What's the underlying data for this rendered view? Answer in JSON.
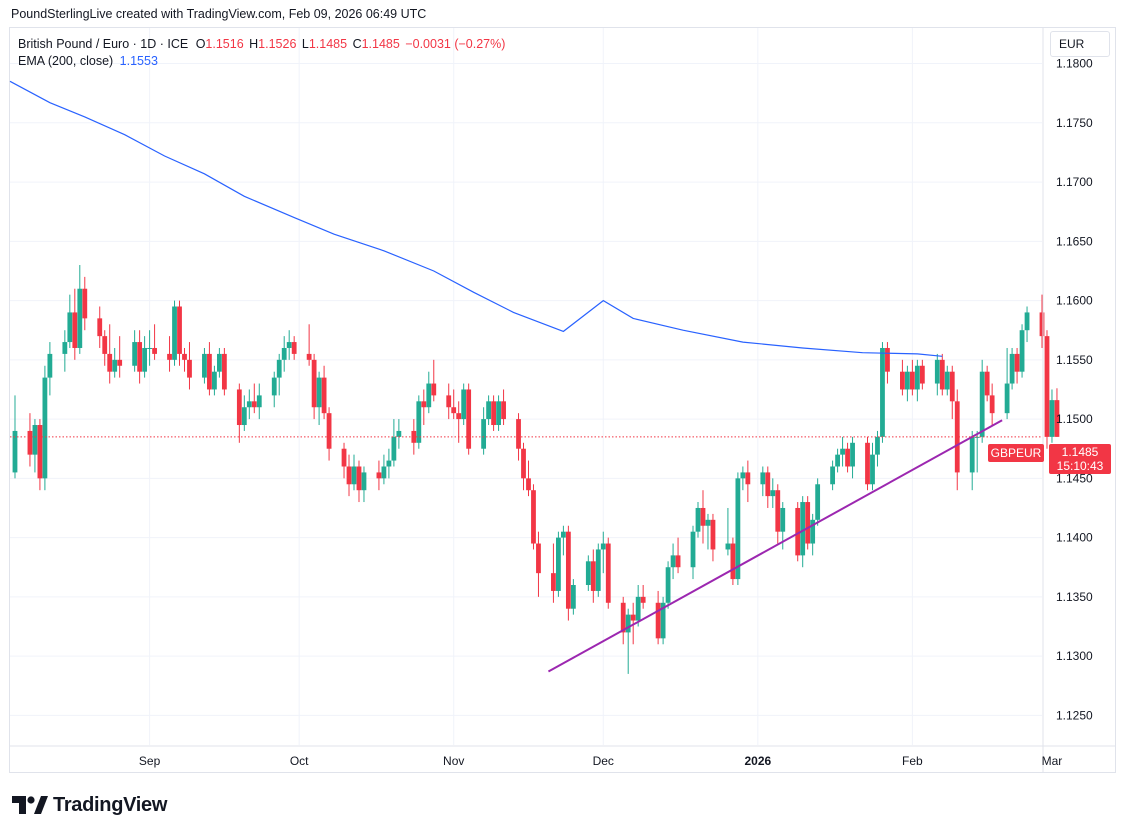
{
  "credit": "PoundSterlingLive created with TradingView.com, Feb 09, 2026 06:49 UTC",
  "legend": {
    "symbol": "British Pound / Euro · 1D · ICE",
    "o_label": "O",
    "o_value": "1.1516",
    "h_label": "H",
    "h_value": "1.1526",
    "l_label": "L",
    "l_value": "1.1485",
    "c_label": "C",
    "c_value": "1.1485",
    "change": "−0.0031 (−0.27%)",
    "ema_label": "EMA (200, close)",
    "ema_value": "1.1553"
  },
  "currency": "EUR",
  "symbol_tag": "GBPEUR",
  "last_price": "1.1485",
  "countdown": "15:10:43",
  "logo": "TradingView",
  "colors": {
    "up": "#22ab94",
    "down": "#f23645",
    "ema": "#2962ff",
    "trend": "#9c27b0",
    "grid": "#f0f3fa"
  },
  "chart_data": {
    "type": "candlestick",
    "title": "British Pound / Euro · 1D · ICE",
    "ylim": [
      1.1225,
      1.183
    ],
    "y_ticks": [
      1.125,
      1.13,
      1.135,
      1.14,
      1.145,
      1.15,
      1.155,
      1.16,
      1.165,
      1.17,
      1.175,
      1.18
    ],
    "y_tick_labels": [
      "1.1250",
      "1.1300",
      "1.1350",
      "1.1400",
      "1.1450",
      "1.1500",
      "1.1550",
      "1.1600",
      "1.1650",
      "1.1700",
      "1.1750",
      "1.1800"
    ],
    "x_range_days": [
      -1,
      206
    ],
    "x_ticks": [
      {
        "day": 27,
        "label": "Sep",
        "bold": false
      },
      {
        "day": 57,
        "label": "Oct",
        "bold": false
      },
      {
        "day": 88,
        "label": "Nov",
        "bold": false
      },
      {
        "day": 118,
        "label": "Dec",
        "bold": false
      },
      {
        "day": 149,
        "label": "2026",
        "bold": true
      },
      {
        "day": 180,
        "label": "Feb",
        "bold": false
      },
      {
        "day": 208,
        "label": "Mar",
        "bold": false
      }
    ],
    "series": [
      {
        "name": "GBPEUR",
        "type": "candlestick",
        "start": "Aug 01, 2025",
        "ohlc": [
          [
            1.1455,
            1.152,
            1.145,
            1.149
          ],
          [
            1.149,
            1.1505,
            1.146,
            1.147
          ],
          [
            1.147,
            1.15,
            1.1455,
            1.1495
          ],
          [
            1.1495,
            1.15,
            1.144,
            1.145
          ],
          [
            1.145,
            1.1545,
            1.144,
            1.1535
          ],
          [
            1.1535,
            1.1565,
            1.152,
            1.1555
          ],
          [
            1.1555,
            1.1575,
            1.154,
            1.1565
          ],
          [
            1.1565,
            1.1605,
            1.156,
            1.159
          ],
          [
            1.159,
            1.161,
            1.155,
            1.156
          ],
          [
            1.156,
            1.163,
            1.1555,
            1.161
          ],
          [
            1.161,
            1.162,
            1.1575,
            1.1585
          ],
          [
            1.1585,
            1.1595,
            1.156,
            1.157
          ],
          [
            1.157,
            1.1575,
            1.1545,
            1.1555
          ],
          [
            1.1555,
            1.158,
            1.153,
            1.154
          ],
          [
            1.154,
            1.156,
            1.1535,
            1.155
          ],
          [
            1.155,
            1.157,
            1.1535,
            1.1545
          ],
          [
            1.1545,
            1.1575,
            1.154,
            1.1565
          ],
          [
            1.1565,
            1.1575,
            1.153,
            1.154
          ],
          [
            1.154,
            1.157,
            1.1535,
            1.156
          ],
          [
            1.156,
            1.1575,
            1.1545,
            1.156
          ],
          [
            1.156,
            1.158,
            1.155,
            1.1555
          ],
          [
            1.1555,
            1.157,
            1.154,
            1.155
          ],
          [
            1.155,
            1.16,
            1.1545,
            1.1595
          ],
          [
            1.1595,
            1.16,
            1.1545,
            1.1555
          ],
          [
            1.1555,
            1.156,
            1.154,
            1.155
          ],
          [
            1.155,
            1.1565,
            1.1525,
            1.1535
          ],
          [
            1.1535,
            1.156,
            1.153,
            1.1555
          ],
          [
            1.1555,
            1.1565,
            1.152,
            1.1525
          ],
          [
            1.1525,
            1.1545,
            1.152,
            1.154
          ],
          [
            1.154,
            1.156,
            1.1535,
            1.1555
          ],
          [
            1.1555,
            1.156,
            1.152,
            1.1525
          ],
          [
            1.1525,
            1.153,
            1.148,
            1.1495
          ],
          [
            1.1495,
            1.152,
            1.149,
            1.151
          ],
          [
            1.151,
            1.1525,
            1.15,
            1.1515
          ],
          [
            1.1515,
            1.153,
            1.1505,
            1.151
          ],
          [
            1.151,
            1.153,
            1.15,
            1.152
          ],
          [
            1.152,
            1.154,
            1.151,
            1.1535
          ],
          [
            1.1535,
            1.1555,
            1.152,
            1.155
          ],
          [
            1.155,
            1.157,
            1.154,
            1.156
          ],
          [
            1.156,
            1.1575,
            1.155,
            1.1565
          ],
          [
            1.1565,
            1.157,
            1.155,
            1.1555
          ],
          [
            1.1555,
            1.158,
            1.1545,
            1.155
          ],
          [
            1.155,
            1.1555,
            1.15,
            1.151
          ],
          [
            1.151,
            1.154,
            1.1495,
            1.1535
          ],
          [
            1.1535,
            1.1545,
            1.15,
            1.1505
          ],
          [
            1.1505,
            1.151,
            1.1465,
            1.1475
          ],
          [
            1.1475,
            1.148,
            1.145,
            1.146
          ],
          [
            1.146,
            1.147,
            1.1435,
            1.1445
          ],
          [
            1.1445,
            1.147,
            1.144,
            1.146
          ],
          [
            1.146,
            1.1465,
            1.143,
            1.144
          ],
          [
            1.144,
            1.146,
            1.143,
            1.1455
          ],
          [
            1.1455,
            1.1465,
            1.144,
            1.145
          ],
          [
            1.145,
            1.147,
            1.1445,
            1.146
          ],
          [
            1.146,
            1.1475,
            1.145,
            1.1465
          ],
          [
            1.1465,
            1.15,
            1.146,
            1.1485
          ],
          [
            1.1485,
            1.15,
            1.1475,
            1.149
          ],
          [
            1.149,
            1.15,
            1.147,
            1.148
          ],
          [
            1.148,
            1.152,
            1.1475,
            1.1515
          ],
          [
            1.1515,
            1.1525,
            1.1495,
            1.151
          ],
          [
            1.151,
            1.154,
            1.1505,
            1.153
          ],
          [
            1.153,
            1.155,
            1.1515,
            1.152
          ],
          [
            1.152,
            1.153,
            1.15,
            1.151
          ],
          [
            1.151,
            1.1525,
            1.15,
            1.1505
          ],
          [
            1.1505,
            1.1515,
            1.148,
            1.15
          ],
          [
            1.15,
            1.153,
            1.1495,
            1.1525
          ],
          [
            1.1525,
            1.153,
            1.147,
            1.1475
          ],
          [
            1.1475,
            1.151,
            1.147,
            1.15
          ],
          [
            1.15,
            1.152,
            1.1495,
            1.1515
          ],
          [
            1.1515,
            1.152,
            1.149,
            1.1495
          ],
          [
            1.1495,
            1.152,
            1.149,
            1.1515
          ],
          [
            1.1515,
            1.1525,
            1.1495,
            1.15
          ],
          [
            1.15,
            1.1505,
            1.1465,
            1.1475
          ],
          [
            1.1475,
            1.148,
            1.144,
            1.145
          ],
          [
            1.145,
            1.1465,
            1.1435,
            1.144
          ],
          [
            1.144,
            1.1445,
            1.139,
            1.1395
          ],
          [
            1.1395,
            1.1405,
            1.135,
            1.137
          ],
          [
            1.137,
            1.1395,
            1.1345,
            1.1355
          ],
          [
            1.1355,
            1.1405,
            1.135,
            1.14
          ],
          [
            1.14,
            1.141,
            1.1385,
            1.1405
          ],
          [
            1.1405,
            1.141,
            1.133,
            1.134
          ],
          [
            1.134,
            1.1365,
            1.1335,
            1.136
          ],
          [
            1.136,
            1.1385,
            1.1355,
            1.138
          ],
          [
            1.138,
            1.139,
            1.1345,
            1.1355
          ],
          [
            1.1355,
            1.1395,
            1.135,
            1.139
          ],
          [
            1.139,
            1.1405,
            1.137,
            1.1395
          ],
          [
            1.1395,
            1.14,
            1.134,
            1.1345
          ],
          [
            1.1345,
            1.135,
            1.131,
            1.132
          ],
          [
            1.132,
            1.134,
            1.1285,
            1.1335
          ],
          [
            1.1335,
            1.1345,
            1.131,
            1.133
          ],
          [
            1.133,
            1.136,
            1.1325,
            1.135
          ],
          [
            1.135,
            1.136,
            1.134,
            1.1345
          ],
          [
            1.1345,
            1.1355,
            1.131,
            1.1315
          ],
          [
            1.1315,
            1.135,
            1.131,
            1.1345
          ],
          [
            1.1345,
            1.138,
            1.134,
            1.1375
          ],
          [
            1.1375,
            1.1395,
            1.1365,
            1.1385
          ],
          [
            1.1385,
            1.14,
            1.137,
            1.1375
          ],
          [
            1.1375,
            1.141,
            1.1365,
            1.1405
          ],
          [
            1.1405,
            1.143,
            1.14,
            1.1425
          ],
          [
            1.1425,
            1.144,
            1.1395,
            1.141
          ],
          [
            1.141,
            1.142,
            1.139,
            1.1415
          ],
          [
            1.1415,
            1.142,
            1.138,
            1.139
          ],
          [
            1.139,
            1.1425,
            1.1385,
            1.1395
          ],
          [
            1.1395,
            1.14,
            1.136,
            1.1365
          ],
          [
            1.1365,
            1.1455,
            1.136,
            1.145
          ],
          [
            1.145,
            1.146,
            1.144,
            1.1455
          ],
          [
            1.1455,
            1.1465,
            1.143,
            1.1445
          ],
          [
            1.1445,
            1.146,
            1.1435,
            1.1455
          ],
          [
            1.1455,
            1.146,
            1.1425,
            1.1435
          ],
          [
            1.1435,
            1.145,
            1.1425,
            1.144
          ],
          [
            1.144,
            1.1445,
            1.1395,
            1.1405
          ],
          [
            1.1405,
            1.143,
            1.139,
            1.1425
          ],
          [
            1.1425,
            1.143,
            1.138,
            1.1385
          ],
          [
            1.1385,
            1.1435,
            1.1375,
            1.143
          ],
          [
            1.143,
            1.1435,
            1.139,
            1.1395
          ],
          [
            1.1395,
            1.142,
            1.1385,
            1.1415
          ],
          [
            1.1415,
            1.145,
            1.141,
            1.1445
          ],
          [
            1.1445,
            1.1465,
            1.144,
            1.146
          ],
          [
            1.146,
            1.1475,
            1.1455,
            1.147
          ],
          [
            1.147,
            1.1485,
            1.146,
            1.1475
          ],
          [
            1.1475,
            1.148,
            1.1455,
            1.146
          ],
          [
            1.146,
            1.1485,
            1.145,
            1.148
          ],
          [
            1.148,
            1.1485,
            1.144,
            1.1445
          ],
          [
            1.1445,
            1.148,
            1.144,
            1.147
          ],
          [
            1.147,
            1.149,
            1.146,
            1.1485
          ],
          [
            1.1485,
            1.1565,
            1.148,
            1.156
          ],
          [
            1.156,
            1.1565,
            1.153,
            1.154
          ],
          [
            1.154,
            1.155,
            1.152,
            1.1525
          ],
          [
            1.1525,
            1.1545,
            1.1515,
            1.154
          ],
          [
            1.154,
            1.155,
            1.152,
            1.1525
          ],
          [
            1.1525,
            1.155,
            1.1515,
            1.1545
          ],
          [
            1.1545,
            1.155,
            1.1525,
            1.153
          ],
          [
            1.153,
            1.1555,
            1.152,
            1.155
          ],
          [
            1.155,
            1.1555,
            1.152,
            1.1525
          ],
          [
            1.1525,
            1.1545,
            1.152,
            1.154
          ],
          [
            1.154,
            1.1545,
            1.15,
            1.1515
          ],
          [
            1.1515,
            1.1525,
            1.144,
            1.1455
          ],
          [
            1.1455,
            1.149,
            1.144,
            1.1485
          ],
          [
            1.1485,
            1.149,
            1.1455,
            1.1485
          ],
          [
            1.1485,
            1.155,
            1.148,
            1.154
          ],
          [
            1.154,
            1.1545,
            1.1515,
            1.152
          ],
          [
            1.152,
            1.153,
            1.1495,
            1.1505
          ],
          [
            1.1505,
            1.156,
            1.15,
            1.153
          ],
          [
            1.153,
            1.156,
            1.1525,
            1.1555
          ],
          [
            1.1555,
            1.156,
            1.153,
            1.154
          ],
          [
            1.154,
            1.158,
            1.1535,
            1.1575
          ],
          [
            1.1575,
            1.1595,
            1.1565,
            1.159
          ],
          [
            1.159,
            1.1605,
            1.156,
            1.157
          ],
          [
            1.157,
            1.1575,
            1.1475,
            1.1485
          ],
          [
            1.1485,
            1.1525,
            1.148,
            1.1516
          ],
          [
            1.1516,
            1.1526,
            1.1485,
            1.1485
          ]
        ]
      },
      {
        "name": "EMA (200, close)",
        "type": "line",
        "points": [
          [
            -1,
            1.1785
          ],
          [
            7,
            1.1767
          ],
          [
            14,
            1.1755
          ],
          [
            22,
            1.174
          ],
          [
            30,
            1.1722
          ],
          [
            38,
            1.1707
          ],
          [
            46,
            1.1688
          ],
          [
            56,
            1.167
          ],
          [
            64,
            1.1656
          ],
          [
            74,
            1.1642
          ],
          [
            84,
            1.1625
          ],
          [
            92,
            1.1607
          ],
          [
            100,
            1.159
          ],
          [
            110,
            1.1574
          ],
          [
            118,
            1.16
          ],
          [
            124,
            1.1585
          ],
          [
            134,
            1.1575
          ],
          [
            146,
            1.1565
          ],
          [
            158,
            1.156
          ],
          [
            170,
            1.1556
          ],
          [
            181,
            1.1555
          ],
          [
            186,
            1.1553
          ]
        ]
      }
    ],
    "trendline": {
      "from": [
        107,
        1.1287
      ],
      "to": [
        198,
        1.1499
      ]
    },
    "last_price_line": 1.1485
  }
}
